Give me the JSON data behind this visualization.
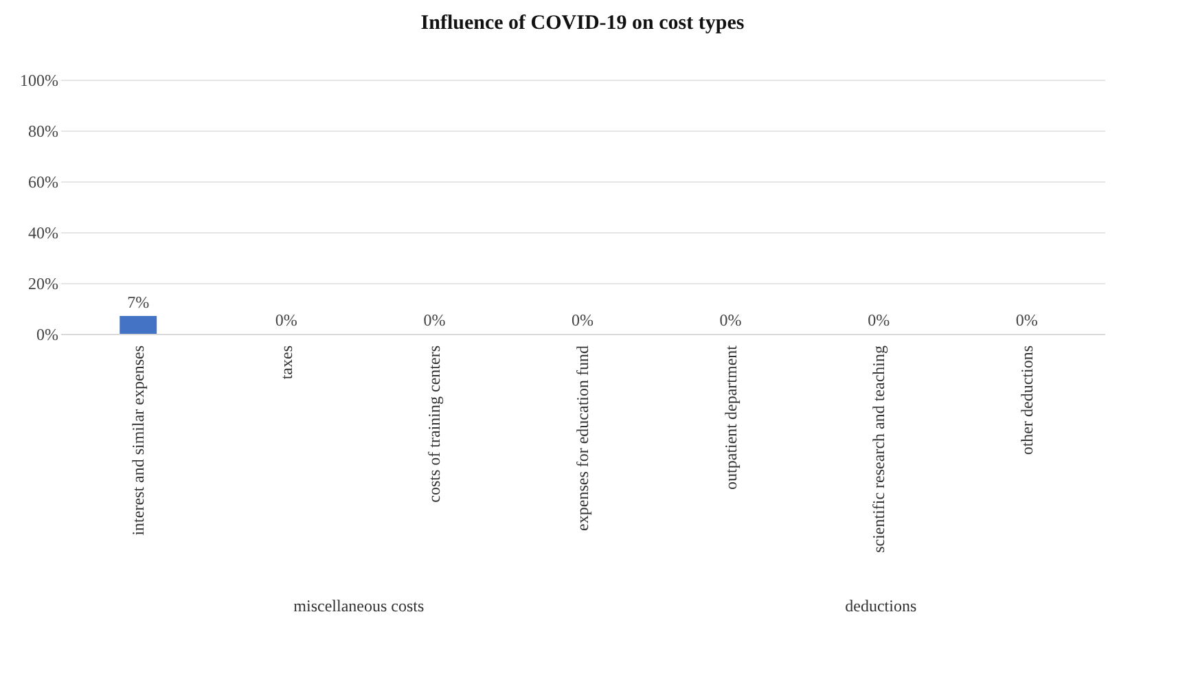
{
  "chart_data": {
    "type": "bar",
    "title": "Influence of COVID-19 on cost types",
    "categories": [
      "interest and similar expenses",
      "taxes",
      "costs of training centers",
      "expenses for education fund",
      "outpatient department",
      "scientific research and teaching",
      "other deductions"
    ],
    "values": [
      7,
      0,
      0,
      0,
      0,
      0,
      0
    ],
    "value_labels": [
      "7%",
      "0%",
      "0%",
      "0%",
      "0%",
      "0%",
      "0%"
    ],
    "color": "#4472c4",
    "ylim": [
      0,
      100
    ],
    "yticks": [
      {
        "value": 0,
        "label": "0%"
      },
      {
        "value": 20,
        "label": "20%"
      },
      {
        "value": 40,
        "label": "40%"
      },
      {
        "value": 60,
        "label": "60%"
      },
      {
        "value": 80,
        "label": "80%"
      },
      {
        "value": 100,
        "label": "100%"
      }
    ],
    "grid": "y",
    "annotations": [
      "miscellaneous costs",
      "deductions"
    ]
  }
}
